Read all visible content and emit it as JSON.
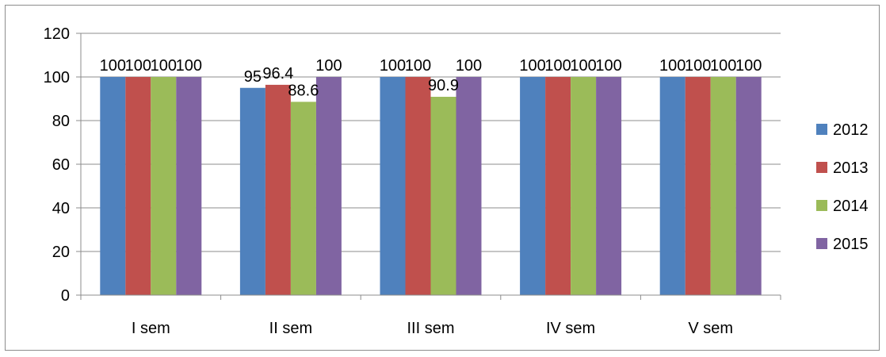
{
  "chart_data": {
    "type": "bar",
    "title": "",
    "xlabel": "",
    "ylabel": "",
    "categories": [
      "I sem",
      "II sem",
      "III sem",
      "IV sem",
      "V sem"
    ],
    "series": [
      {
        "name": "2012",
        "color": "#4f81bd",
        "values": [
          100,
          95,
          100,
          100,
          100
        ],
        "labels": [
          "100",
          "95",
          "100",
          "100",
          "100"
        ]
      },
      {
        "name": "2013",
        "color": "#c0504d",
        "values": [
          100,
          96.4,
          100,
          100,
          100
        ],
        "labels": [
          "100",
          "96.4",
          "100",
          "100",
          "100"
        ]
      },
      {
        "name": "2014",
        "color": "#9bbb59",
        "values": [
          100,
          88.6,
          90.9,
          100,
          100
        ],
        "labels": [
          "100",
          "88.6",
          "90.9",
          "100",
          "100"
        ]
      },
      {
        "name": "2015",
        "color": "#8064a2",
        "values": [
          100,
          100,
          100,
          100,
          100
        ],
        "labels": [
          "100",
          "100",
          "100",
          "100",
          "100"
        ]
      }
    ],
    "ylim": [
      0,
      120
    ],
    "yticks": [
      0,
      20,
      40,
      60,
      80,
      100,
      120
    ],
    "grid": true,
    "legend_position": "right"
  }
}
